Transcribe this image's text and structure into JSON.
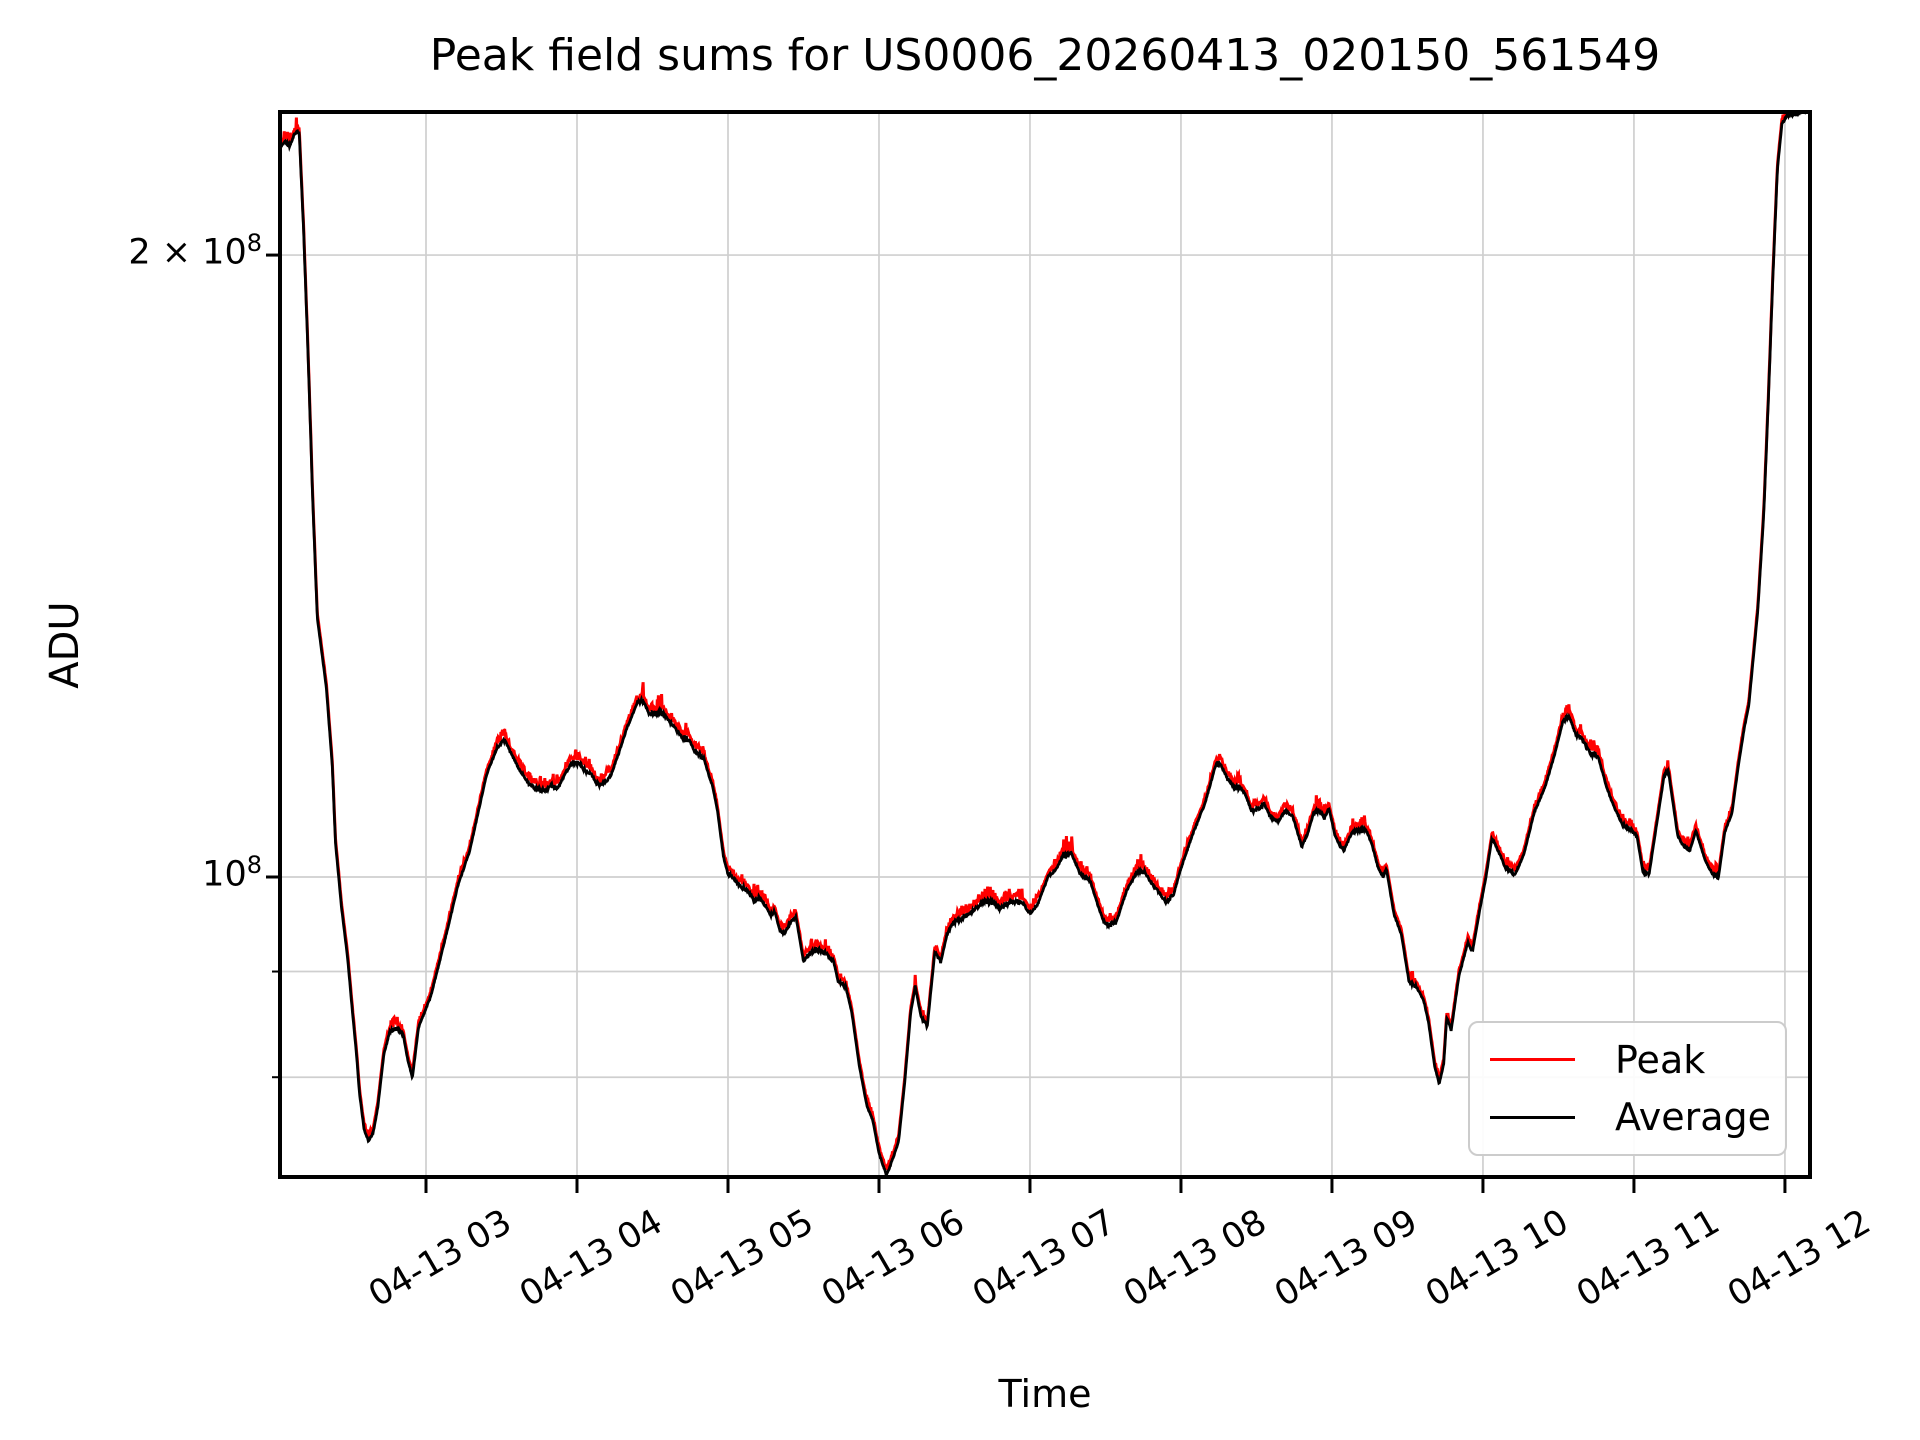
{
  "title": "Peak field sums for US0006_20260413_020150_561549",
  "xlabel": "Time",
  "ylabel": "ADU",
  "legend": {
    "position": "lower right",
    "items": [
      {
        "label": "Peak",
        "color": "#ff0000"
      },
      {
        "label": "Average",
        "color": "#000000"
      }
    ]
  },
  "colors": {
    "grid": "#cfcfcf",
    "spine": "#000000",
    "background": "#ffffff",
    "peak_line": "#ff0000",
    "average_line": "#000000",
    "legend_border": "#cccccc"
  },
  "axes": {
    "x_ticks": [
      {
        "label": "04-13 03",
        "hour": 3
      },
      {
        "label": "04-13 04",
        "hour": 4
      },
      {
        "label": "04-13 05",
        "hour": 5
      },
      {
        "label": "04-13 06",
        "hour": 6
      },
      {
        "label": "04-13 07",
        "hour": 7
      },
      {
        "label": "04-13 08",
        "hour": 8
      },
      {
        "label": "04-13 09",
        "hour": 9
      },
      {
        "label": "04-13 10",
        "hour": 10
      },
      {
        "label": "04-13 11",
        "hour": 11
      },
      {
        "label": "04-13 12",
        "hour": 12
      }
    ],
    "y_ticks": [
      {
        "base": "2 × 10",
        "sup": "8",
        "value": 200,
        "kind": "major"
      },
      {
        "base": "10",
        "sup": "8",
        "value": 100,
        "kind": "major"
      },
      {
        "value": 90,
        "kind": "minor"
      },
      {
        "value": 80,
        "kind": "minor"
      }
    ]
  },
  "chart_data": {
    "type": "line",
    "title": "Peak field sums for US0006_20260413_020150_561549",
    "xlabel": "Time",
    "ylabel": "ADU",
    "yscale": "log",
    "grid": true,
    "legend_position": "lower right",
    "x_unit": "decimal hours on 2026-04-13 (2.0 = 02:00)",
    "values_unit": "1e6 ADU",
    "xlim": [
      2.033,
      12.166
    ],
    "ylim": [
      71.6,
      234.6
    ],
    "columns": [
      "time_hours",
      "average",
      "peak"
    ],
    "series": [
      {
        "name": "Peak",
        "color": "#ff0000",
        "column": "peak"
      },
      {
        "name": "Average",
        "color": "#000000",
        "column": "average"
      }
    ],
    "points": [
      [
        2.03,
        225.0,
        226.1
      ],
      [
        2.06,
        227.0,
        228.1
      ],
      [
        2.1,
        226.0,
        227.1
      ],
      [
        2.13,
        229.0,
        230.1
      ],
      [
        2.16,
        229.5,
        230.6
      ],
      [
        2.19,
        205.0,
        206.0
      ],
      [
        2.22,
        178.0,
        178.9
      ],
      [
        2.25,
        152.0,
        152.8
      ],
      [
        2.28,
        133.5,
        134.2
      ],
      [
        2.34,
        123.5,
        124.1
      ],
      [
        2.38,
        113.0,
        113.6
      ],
      [
        2.4,
        104.0,
        104.5
      ],
      [
        2.44,
        96.7,
        97.2
      ],
      [
        2.48,
        91.5,
        92.0
      ],
      [
        2.51,
        86.5,
        86.9
      ],
      [
        2.54,
        82.0,
        82.4
      ],
      [
        2.56,
        78.5,
        78.9
      ],
      [
        2.59,
        75.5,
        75.9
      ],
      [
        2.62,
        74.5,
        74.9
      ],
      [
        2.65,
        75.2,
        75.6
      ],
      [
        2.68,
        77.3,
        77.7
      ],
      [
        2.72,
        82.0,
        82.4
      ],
      [
        2.76,
        84.2,
        84.6
      ],
      [
        2.81,
        84.5,
        84.9
      ],
      [
        2.85,
        83.8,
        84.2
      ],
      [
        2.88,
        81.5,
        81.9
      ],
      [
        2.91,
        80.0,
        80.4
      ],
      [
        2.95,
        84.5,
        84.9
      ],
      [
        3.03,
        87.5,
        87.9
      ],
      [
        3.09,
        91.0,
        91.5
      ],
      [
        3.16,
        95.5,
        96.0
      ],
      [
        3.21,
        99.0,
        99.5
      ],
      [
        3.26,
        101.5,
        102.0
      ],
      [
        3.29,
        103.0,
        103.5
      ],
      [
        3.34,
        107.0,
        107.5
      ],
      [
        3.4,
        112.0,
        112.6
      ],
      [
        3.47,
        115.5,
        116.1
      ],
      [
        3.52,
        116.5,
        117.1
      ],
      [
        3.57,
        114.5,
        115.1
      ],
      [
        3.62,
        112.7,
        113.3
      ],
      [
        3.68,
        111.0,
        111.6
      ],
      [
        3.73,
        110.3,
        110.9
      ],
      [
        3.79,
        110.0,
        110.6
      ],
      [
        3.83,
        110.8,
        111.4
      ],
      [
        3.87,
        110.3,
        110.9
      ],
      [
        3.92,
        112.2,
        112.8
      ],
      [
        3.97,
        113.7,
        114.3
      ],
      [
        4.01,
        113.7,
        114.3
      ],
      [
        4.05,
        112.7,
        113.3
      ],
      [
        4.09,
        112.3,
        112.9
      ],
      [
        4.13,
        111.0,
        111.6
      ],
      [
        4.16,
        110.8,
        111.4
      ],
      [
        4.22,
        111.8,
        112.4
      ],
      [
        4.28,
        115.0,
        115.6
      ],
      [
        4.33,
        118.0,
        118.6
      ],
      [
        4.4,
        121.5,
        122.1
      ],
      [
        4.44,
        121.7,
        122.3
      ],
      [
        4.48,
        119.8,
        120.4
      ],
      [
        4.53,
        120.0,
        120.6
      ],
      [
        4.57,
        120.0,
        120.6
      ],
      [
        4.61,
        119.0,
        119.6
      ],
      [
        4.65,
        118.0,
        118.6
      ],
      [
        4.7,
        116.8,
        117.4
      ],
      [
        4.74,
        116.7,
        117.3
      ],
      [
        4.78,
        115.0,
        115.6
      ],
      [
        4.81,
        114.5,
        115.1
      ],
      [
        4.84,
        114.2,
        114.8
      ],
      [
        4.87,
        112.2,
        112.8
      ],
      [
        4.9,
        110.5,
        111.1
      ],
      [
        4.93,
        107.7,
        108.2
      ],
      [
        4.97,
        102.3,
        102.8
      ],
      [
        5.0,
        100.3,
        100.8
      ],
      [
        5.03,
        100.0,
        100.5
      ],
      [
        5.08,
        99.0,
        99.5
      ],
      [
        5.13,
        98.5,
        99.0
      ],
      [
        5.17,
        97.5,
        98.0
      ],
      [
        5.21,
        97.6,
        98.1
      ],
      [
        5.25,
        96.8,
        97.3
      ],
      [
        5.28,
        95.8,
        96.3
      ],
      [
        5.31,
        96.2,
        96.7
      ],
      [
        5.34,
        94.4,
        94.9
      ],
      [
        5.37,
        93.8,
        94.3
      ],
      [
        5.41,
        95.0,
        95.5
      ],
      [
        5.45,
        95.7,
        96.2
      ],
      [
        5.5,
        91.0,
        91.5
      ],
      [
        5.55,
        92.0,
        92.5
      ],
      [
        5.6,
        92.2,
        92.7
      ],
      [
        5.65,
        91.8,
        92.3
      ],
      [
        5.7,
        91.0,
        91.5
      ],
      [
        5.73,
        89.0,
        89.4
      ],
      [
        5.78,
        88.5,
        88.9
      ],
      [
        5.82,
        86.0,
        86.4
      ],
      [
        5.87,
        81.0,
        81.4
      ],
      [
        5.92,
        77.5,
        77.9
      ],
      [
        5.96,
        76.2,
        76.6
      ],
      [
        6.0,
        73.5,
        73.9
      ],
      [
        6.05,
        71.7,
        72.1
      ],
      [
        6.09,
        73.0,
        73.4
      ],
      [
        6.13,
        74.5,
        74.9
      ],
      [
        6.17,
        79.5,
        79.9
      ],
      [
        6.21,
        86.0,
        86.4
      ],
      [
        6.24,
        88.5,
        88.9
      ],
      [
        6.28,
        85.5,
        85.9
      ],
      [
        6.32,
        84.7,
        85.1
      ],
      [
        6.37,
        92.0,
        92.5
      ],
      [
        6.41,
        91.0,
        91.5
      ],
      [
        6.45,
        93.8,
        94.3
      ],
      [
        6.49,
        95.0,
        95.5
      ],
      [
        6.55,
        95.5,
        96.0
      ],
      [
        6.6,
        96.0,
        96.5
      ],
      [
        6.65,
        96.7,
        97.2
      ],
      [
        6.7,
        97.3,
        97.8
      ],
      [
        6.76,
        97.2,
        97.7
      ],
      [
        6.8,
        96.6,
        97.1
      ],
      [
        6.86,
        97.2,
        97.7
      ],
      [
        6.91,
        97.4,
        97.9
      ],
      [
        6.95,
        97.2,
        97.7
      ],
      [
        7.0,
        96.0,
        96.5
      ],
      [
        7.05,
        97.0,
        97.5
      ],
      [
        7.12,
        100.0,
        100.5
      ],
      [
        7.17,
        100.8,
        101.3
      ],
      [
        7.22,
        102.5,
        103.0
      ],
      [
        7.28,
        102.5,
        103.0
      ],
      [
        7.33,
        100.4,
        100.9
      ],
      [
        7.4,
        99.5,
        100.0
      ],
      [
        7.44,
        97.4,
        97.9
      ],
      [
        7.49,
        95.0,
        95.5
      ],
      [
        7.53,
        94.8,
        95.3
      ],
      [
        7.57,
        95.0,
        95.5
      ],
      [
        7.64,
        98.5,
        99.0
      ],
      [
        7.71,
        100.6,
        101.1
      ],
      [
        7.76,
        100.5,
        101.0
      ],
      [
        7.82,
        99.0,
        99.5
      ],
      [
        7.9,
        97.3,
        97.8
      ],
      [
        7.95,
        98.0,
        98.5
      ],
      [
        8.0,
        101.0,
        101.5
      ],
      [
        8.08,
        105.0,
        105.5
      ],
      [
        8.16,
        108.6,
        109.1
      ],
      [
        8.23,
        113.3,
        113.9
      ],
      [
        8.26,
        113.5,
        114.1
      ],
      [
        8.31,
        111.5,
        112.1
      ],
      [
        8.35,
        110.6,
        111.2
      ],
      [
        8.39,
        110.5,
        111.1
      ],
      [
        8.43,
        109.5,
        110.0
      ],
      [
        8.47,
        107.5,
        108.0
      ],
      [
        8.52,
        108.0,
        108.5
      ],
      [
        8.55,
        108.5,
        109.0
      ],
      [
        8.59,
        107.0,
        107.5
      ],
      [
        8.64,
        106.3,
        106.8
      ],
      [
        8.69,
        107.7,
        108.2
      ],
      [
        8.74,
        107.0,
        107.5
      ],
      [
        8.8,
        103.5,
        104.0
      ],
      [
        8.84,
        105.0,
        105.5
      ],
      [
        8.88,
        107.5,
        108.0
      ],
      [
        8.92,
        107.7,
        108.2
      ],
      [
        8.95,
        106.8,
        107.3
      ],
      [
        8.98,
        108.0,
        108.5
      ],
      [
        9.02,
        104.7,
        105.2
      ],
      [
        9.05,
        103.7,
        104.2
      ],
      [
        9.08,
        103.0,
        103.5
      ],
      [
        9.13,
        105.0,
        105.5
      ],
      [
        9.18,
        105.3,
        105.8
      ],
      [
        9.22,
        105.5,
        106.0
      ],
      [
        9.26,
        104.0,
        104.5
      ],
      [
        9.31,
        100.8,
        101.3
      ],
      [
        9.34,
        100.0,
        100.5
      ],
      [
        9.36,
        101.0,
        101.5
      ],
      [
        9.41,
        96.0,
        96.5
      ],
      [
        9.46,
        93.8,
        94.3
      ],
      [
        9.51,
        89.0,
        89.4
      ],
      [
        9.56,
        88.5,
        88.9
      ],
      [
        9.61,
        87.0,
        87.4
      ],
      [
        9.64,
        85.0,
        85.4
      ],
      [
        9.68,
        81.0,
        81.4
      ],
      [
        9.71,
        79.4,
        79.8
      ],
      [
        9.74,
        81.2,
        81.6
      ],
      [
        9.76,
        85.5,
        85.9
      ],
      [
        9.79,
        84.3,
        84.7
      ],
      [
        9.84,
        89.5,
        89.9
      ],
      [
        9.9,
        93.0,
        93.5
      ],
      [
        9.93,
        92.0,
        92.5
      ],
      [
        9.98,
        96.5,
        97.0
      ],
      [
        10.02,
        100.0,
        100.5
      ],
      [
        10.06,
        104.5,
        105.0
      ],
      [
        10.1,
        103.0,
        103.5
      ],
      [
        10.15,
        101.0,
        101.5
      ],
      [
        10.18,
        100.8,
        101.3
      ],
      [
        10.21,
        100.2,
        100.7
      ],
      [
        10.27,
        102.5,
        103.0
      ],
      [
        10.34,
        107.5,
        108.0
      ],
      [
        10.41,
        110.5,
        111.1
      ],
      [
        10.47,
        114.3,
        114.9
      ],
      [
        10.53,
        119.0,
        119.6
      ],
      [
        10.57,
        119.6,
        120.2
      ],
      [
        10.62,
        117.0,
        117.6
      ],
      [
        10.65,
        116.8,
        117.4
      ],
      [
        10.71,
        114.8,
        115.4
      ],
      [
        10.76,
        114.5,
        115.1
      ],
      [
        10.82,
        110.5,
        111.1
      ],
      [
        10.87,
        108.0,
        108.5
      ],
      [
        10.92,
        106.2,
        106.7
      ],
      [
        10.98,
        105.4,
        105.9
      ],
      [
        11.02,
        104.7,
        105.2
      ],
      [
        11.06,
        100.5,
        101.0
      ],
      [
        11.1,
        100.3,
        100.8
      ],
      [
        11.15,
        106.0,
        106.5
      ],
      [
        11.2,
        112.0,
        112.6
      ],
      [
        11.23,
        112.3,
        112.9
      ],
      [
        11.29,
        104.7,
        105.2
      ],
      [
        11.33,
        103.5,
        104.0
      ],
      [
        11.37,
        103.0,
        103.5
      ],
      [
        11.41,
        105.3,
        105.8
      ],
      [
        11.47,
        102.0,
        102.5
      ],
      [
        11.52,
        100.3,
        100.8
      ],
      [
        11.56,
        100.0,
        100.5
      ],
      [
        11.6,
        105.0,
        105.5
      ],
      [
        11.65,
        107.5,
        108.0
      ],
      [
        11.69,
        113.0,
        113.6
      ],
      [
        11.73,
        118.0,
        118.6
      ],
      [
        11.76,
        121.0,
        121.6
      ],
      [
        11.79,
        127.5,
        128.1
      ],
      [
        11.82,
        134.5,
        135.2
      ],
      [
        11.86,
        150.0,
        150.8
      ],
      [
        11.89,
        170.0,
        170.9
      ],
      [
        11.92,
        195.0,
        196.0
      ],
      [
        11.95,
        220.0,
        221.1
      ],
      [
        11.98,
        231.5,
        232.7
      ],
      [
        12.02,
        234.0,
        235.2
      ],
      [
        12.08,
        234.5,
        235.7
      ],
      [
        12.17,
        235.0,
        236.2
      ]
    ]
  }
}
